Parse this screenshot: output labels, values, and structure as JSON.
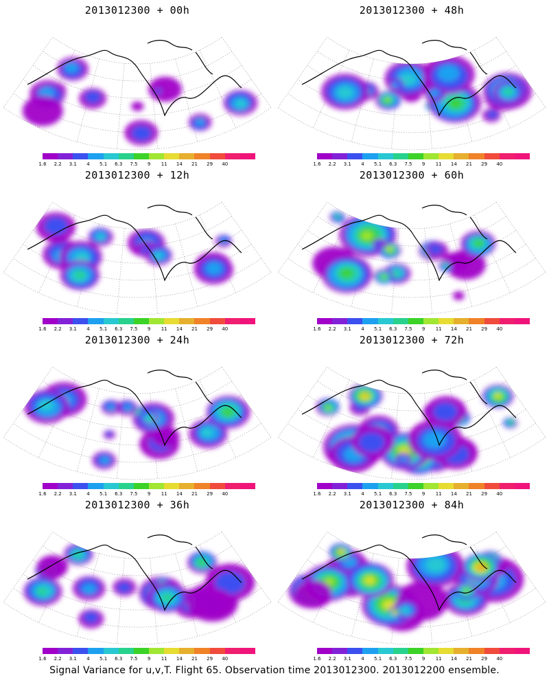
{
  "panels": [
    {
      "title": "2013012300 + 00h",
      "lead": "00h",
      "intensity": 0.25
    },
    {
      "title": "2013012300 + 48h",
      "lead": "48h",
      "intensity": 0.55
    },
    {
      "title": "2013012300 + 12h",
      "lead": "12h",
      "intensity": 0.35
    },
    {
      "title": "2013012300 + 60h",
      "lead": "60h",
      "intensity": 0.65
    },
    {
      "title": "2013012300 + 24h",
      "lead": "24h",
      "intensity": 0.45
    },
    {
      "title": "2013012300 + 72h",
      "lead": "72h",
      "intensity": 0.75
    },
    {
      "title": "2013012300 + 36h",
      "lead": "36h",
      "intensity": 0.5
    },
    {
      "title": "2013012300 + 84h",
      "lead": "84h",
      "intensity": 0.85
    }
  ],
  "colorbar": {
    "labels": [
      "1.6",
      "2.2",
      "3.1",
      "4",
      "5.1",
      "6.3",
      "7.5",
      "9",
      "11",
      "14",
      "21",
      "29",
      "40"
    ],
    "colors": [
      "#a000c8",
      "#8222d8",
      "#3c50f0",
      "#1ea0f0",
      "#28c8d2",
      "#28d28c",
      "#3cd228",
      "#a0e632",
      "#e6dc32",
      "#e6af2d",
      "#f08228",
      "#f04b3c",
      "#f01e6e",
      "#f0147a"
    ]
  },
  "caption": "Signal Variance for u,v,T. Flight 65. Observation time 2013012300. 2013012200 ensemble."
}
